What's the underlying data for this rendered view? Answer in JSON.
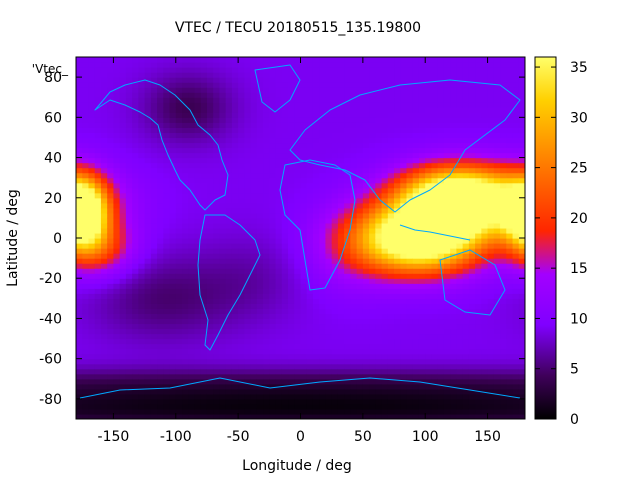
{
  "chart_data": {
    "type": "heatmap",
    "title": "VTEC / TECU 20180515_135.19800",
    "xlabel": "Longitude / deg",
    "ylabel": "Latitude / deg",
    "series_label": "'Vtec_",
    "xlim": [
      -180,
      180
    ],
    "ylim": [
      -90,
      90
    ],
    "x_ticks": [
      "-150",
      "-100",
      "-50",
      "0",
      "50",
      "100",
      "150"
    ],
    "x_tick_values": [
      -150,
      -100,
      -50,
      0,
      50,
      100,
      150
    ],
    "y_ticks": [
      "-80",
      "-60",
      "-40",
      "-20",
      "0",
      "20",
      "40",
      "60",
      "80"
    ],
    "y_tick_values": [
      -80,
      -60,
      -40,
      -20,
      0,
      20,
      40,
      60,
      80
    ],
    "colorbar": {
      "range": [
        0,
        36
      ],
      "ticks": [
        "0",
        "5",
        "10",
        "15",
        "20",
        "25",
        "30",
        "35"
      ],
      "tick_values": [
        0,
        5,
        10,
        15,
        20,
        25,
        30,
        35
      ]
    },
    "grid": false,
    "background_level": 9,
    "features": [
      {
        "lon": 95,
        "lat": 0,
        "peak": 35,
        "slon": 35,
        "slat": 12
      },
      {
        "lon": 145,
        "lat": 18,
        "peak": 22,
        "slon": 40,
        "slat": 12
      },
      {
        "lon": 120,
        "lat": 22,
        "peak": 18,
        "slon": 30,
        "slat": 10
      },
      {
        "lon": -175,
        "lat": 12,
        "peak": 29,
        "slon": 14,
        "slat": 12
      },
      {
        "lon": -160,
        "lat": -5,
        "peak": 10,
        "slon": 20,
        "slat": 10
      },
      {
        "lon": 40,
        "lat": -5,
        "peak": 4,
        "slon": 25,
        "slat": 15
      },
      {
        "lon": -90,
        "lat": 65,
        "peak": -5,
        "slon": 25,
        "slat": 12
      },
      {
        "lon": -110,
        "lat": -30,
        "peak": -4,
        "slon": 40,
        "slat": 15
      },
      {
        "lon": 0,
        "lat": -85,
        "peak": -8,
        "slon": 360,
        "slat": 8
      },
      {
        "lon": 0,
        "lat": -72,
        "peak": -4,
        "slon": 360,
        "slat": 6
      },
      {
        "lon": -40,
        "lat": -20,
        "peak": -2,
        "slon": 30,
        "slat": 15
      }
    ],
    "colors": {
      "line": "#00a8ff",
      "colormap": [
        "#000000",
        "#3f005a",
        "#8000ff",
        "#a300ff",
        "#ff2600",
        "#ff7a00",
        "#ffd000",
        "#ffff6a"
      ]
    }
  }
}
